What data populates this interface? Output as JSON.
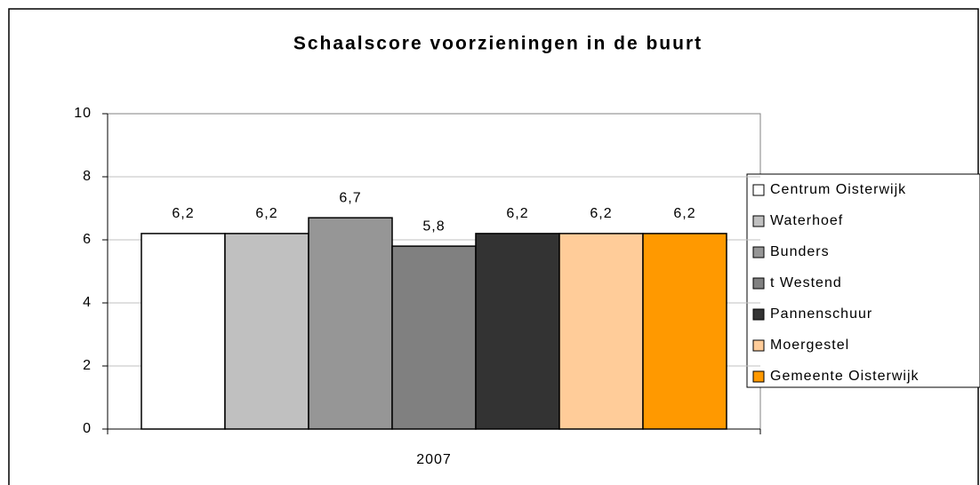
{
  "chart_data": {
    "type": "bar",
    "title": "Schaalscore voorzieningen in de buurt",
    "categories": [
      "2007"
    ],
    "series": [
      {
        "name": "Centrum Oisterwijk",
        "color": "#ffffff",
        "values": [
          6.2
        ],
        "value_labels": [
          "6,2"
        ]
      },
      {
        "name": "Waterhoef",
        "color": "#c0c0c0",
        "values": [
          6.2
        ],
        "value_labels": [
          "6,2"
        ]
      },
      {
        "name": "Bunders",
        "color": "#969696",
        "values": [
          6.7
        ],
        "value_labels": [
          "6,7"
        ]
      },
      {
        "name": "t Westend",
        "color": "#808080",
        "values": [
          5.8
        ],
        "value_labels": [
          "5,8"
        ]
      },
      {
        "name": "Pannenschuur",
        "color": "#333333",
        "values": [
          6.2
        ],
        "value_labels": [
          "6,2"
        ]
      },
      {
        "name": "Moergestel",
        "color": "#ffcc99",
        "values": [
          6.2
        ],
        "value_labels": [
          "6,2"
        ]
      },
      {
        "name": "Gemeente Oisterwijk",
        "color": "#ff9900",
        "values": [
          6.2
        ],
        "value_labels": [
          "6,2"
        ]
      }
    ],
    "ylim": [
      0,
      10
    ],
    "yticks": [
      0,
      2,
      4,
      6,
      8,
      10
    ],
    "grid": true,
    "legend": "right"
  }
}
